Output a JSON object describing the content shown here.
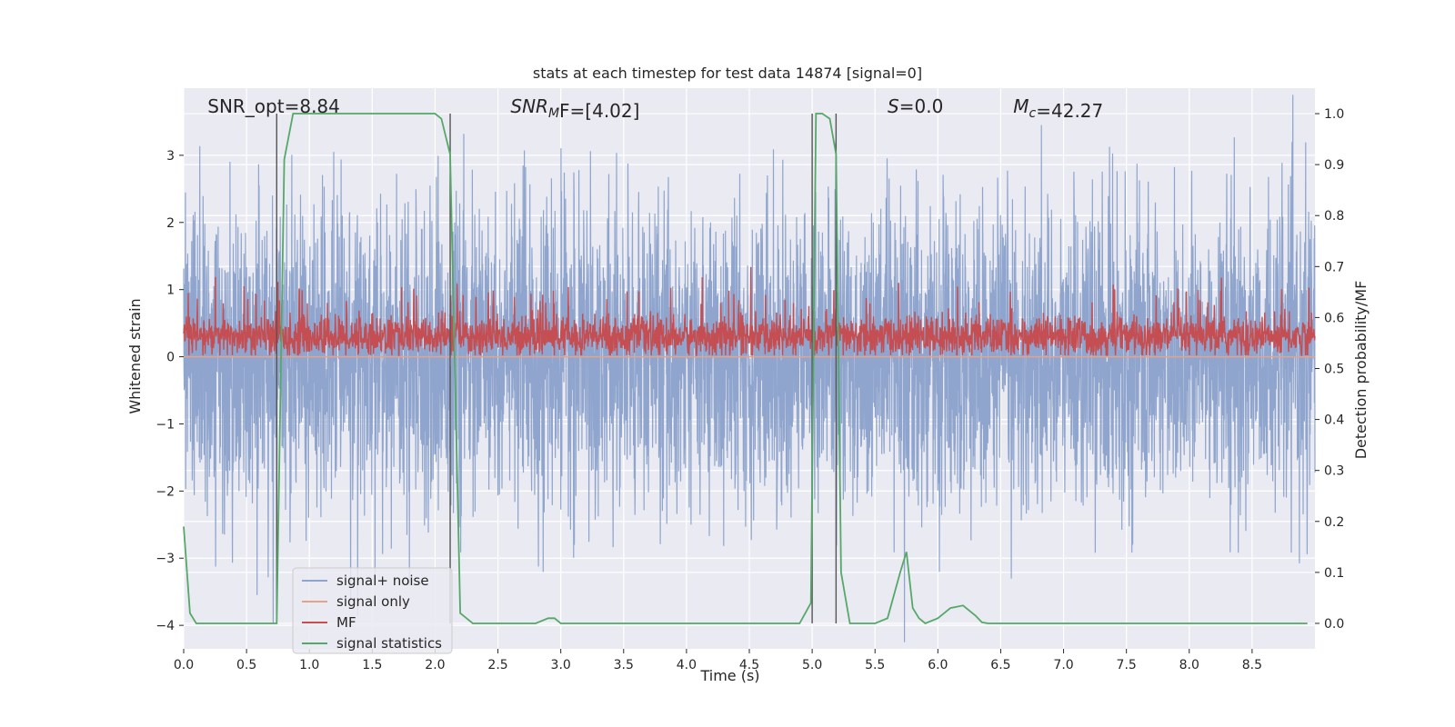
{
  "chart_data": {
    "type": "line",
    "title": "stats at each timestep for test data 14874 [signal=0]",
    "xlabel": "Time (s)",
    "ylabel": "Whitened strain",
    "y2label": "Detection probability/MF",
    "xlim": [
      0.0,
      9.0
    ],
    "ylim": [
      -4.35,
      4.0
    ],
    "y2lim": [
      -0.05,
      1.05
    ],
    "xticks": [
      "0.0",
      "0.5",
      "1.0",
      "1.5",
      "2.0",
      "2.5",
      "3.0",
      "3.5",
      "4.0",
      "4.5",
      "5.0",
      "5.5",
      "6.0",
      "6.5",
      "7.0",
      "7.5",
      "8.0",
      "8.5"
    ],
    "xtick_values": [
      0.0,
      0.5,
      1.0,
      1.5,
      2.0,
      2.5,
      3.0,
      3.5,
      4.0,
      4.5,
      5.0,
      5.5,
      6.0,
      6.5,
      7.0,
      7.5,
      8.0,
      8.5
    ],
    "yticks": [
      "3",
      "2",
      "1",
      "0",
      "−1",
      "−2",
      "−3",
      "−4"
    ],
    "ytick_values": [
      3,
      2,
      1,
      0,
      -1,
      -2,
      -3,
      -4
    ],
    "y2ticks": [
      "1.0",
      "0.9",
      "0.8",
      "0.7",
      "0.6",
      "0.5",
      "0.4",
      "0.3",
      "0.2",
      "0.1",
      "0.0"
    ],
    "y2tick_values": [
      1.0,
      0.9,
      0.8,
      0.7,
      0.6,
      0.5,
      0.4,
      0.3,
      0.2,
      0.1,
      0.0
    ],
    "grid": true,
    "legend_position": "lower-left",
    "annotations": [
      {
        "prefix": "SNR_opt=",
        "sub": "",
        "suffix": "",
        "value": "8.84",
        "x": 0.19
      },
      {
        "prefix": "SNR",
        "sub": "M",
        "suffix": "F=",
        "value": "[4.02]",
        "x": 2.6,
        "italic": true
      },
      {
        "prefix": "S",
        "sub": "",
        "suffix": "=",
        "value": "0.0",
        "x": 5.6,
        "italic": true
      },
      {
        "prefix": "M",
        "sub": "c",
        "suffix": "=",
        "value": "42.27",
        "x": 6.6,
        "italic": true
      }
    ],
    "vlines": [
      0.74,
      2.12,
      5.0,
      5.19
    ],
    "series": [
      {
        "name": "signal+ noise",
        "color": "#8fa5cd",
        "kind": "noise",
        "amplitude": 1.1
      },
      {
        "name": "signal only",
        "color": "#e3a38a",
        "kind": "flat",
        "value": 0.0
      },
      {
        "name": "MF",
        "color": "#c44e52",
        "kind": "mf",
        "center": 0.3,
        "amplitude": 0.2
      },
      {
        "name": "signal statistics",
        "color": "#55a868",
        "axis": "y2",
        "x": [
          0.0,
          0.05,
          0.1,
          0.2,
          0.3,
          0.4,
          0.5,
          0.6,
          0.7,
          0.74,
          0.8,
          0.87,
          1.0,
          1.2,
          1.5,
          1.8,
          2.0,
          2.05,
          2.12,
          2.2,
          2.3,
          2.5,
          2.8,
          2.9,
          2.95,
          3.0,
          3.1,
          3.5,
          4.0,
          4.5,
          4.9,
          4.99,
          5.03,
          5.08,
          5.14,
          5.19,
          5.23,
          5.3,
          5.4,
          5.5,
          5.6,
          5.7,
          5.75,
          5.8,
          5.85,
          5.9,
          6.0,
          6.1,
          6.2,
          6.3,
          6.35,
          6.4,
          7.0,
          8.0,
          8.94
        ],
        "values": [
          0.19,
          0.02,
          0.0,
          0.0,
          0.0,
          0.0,
          0.0,
          0.0,
          0.0,
          0.0,
          0.91,
          1.0,
          1.0,
          1.0,
          1.0,
          1.0,
          1.0,
          0.99,
          0.92,
          0.02,
          0.0,
          0.0,
          0.0,
          0.01,
          0.01,
          0.0,
          0.0,
          0.0,
          0.0,
          0.0,
          0.0,
          0.04,
          1.0,
          1.0,
          0.99,
          0.92,
          0.1,
          0.0,
          0.0,
          0.0,
          0.01,
          0.1,
          0.14,
          0.03,
          0.01,
          0.0,
          0.01,
          0.03,
          0.035,
          0.015,
          0.002,
          0.0,
          0.0,
          0.0,
          0.0
        ]
      }
    ]
  }
}
